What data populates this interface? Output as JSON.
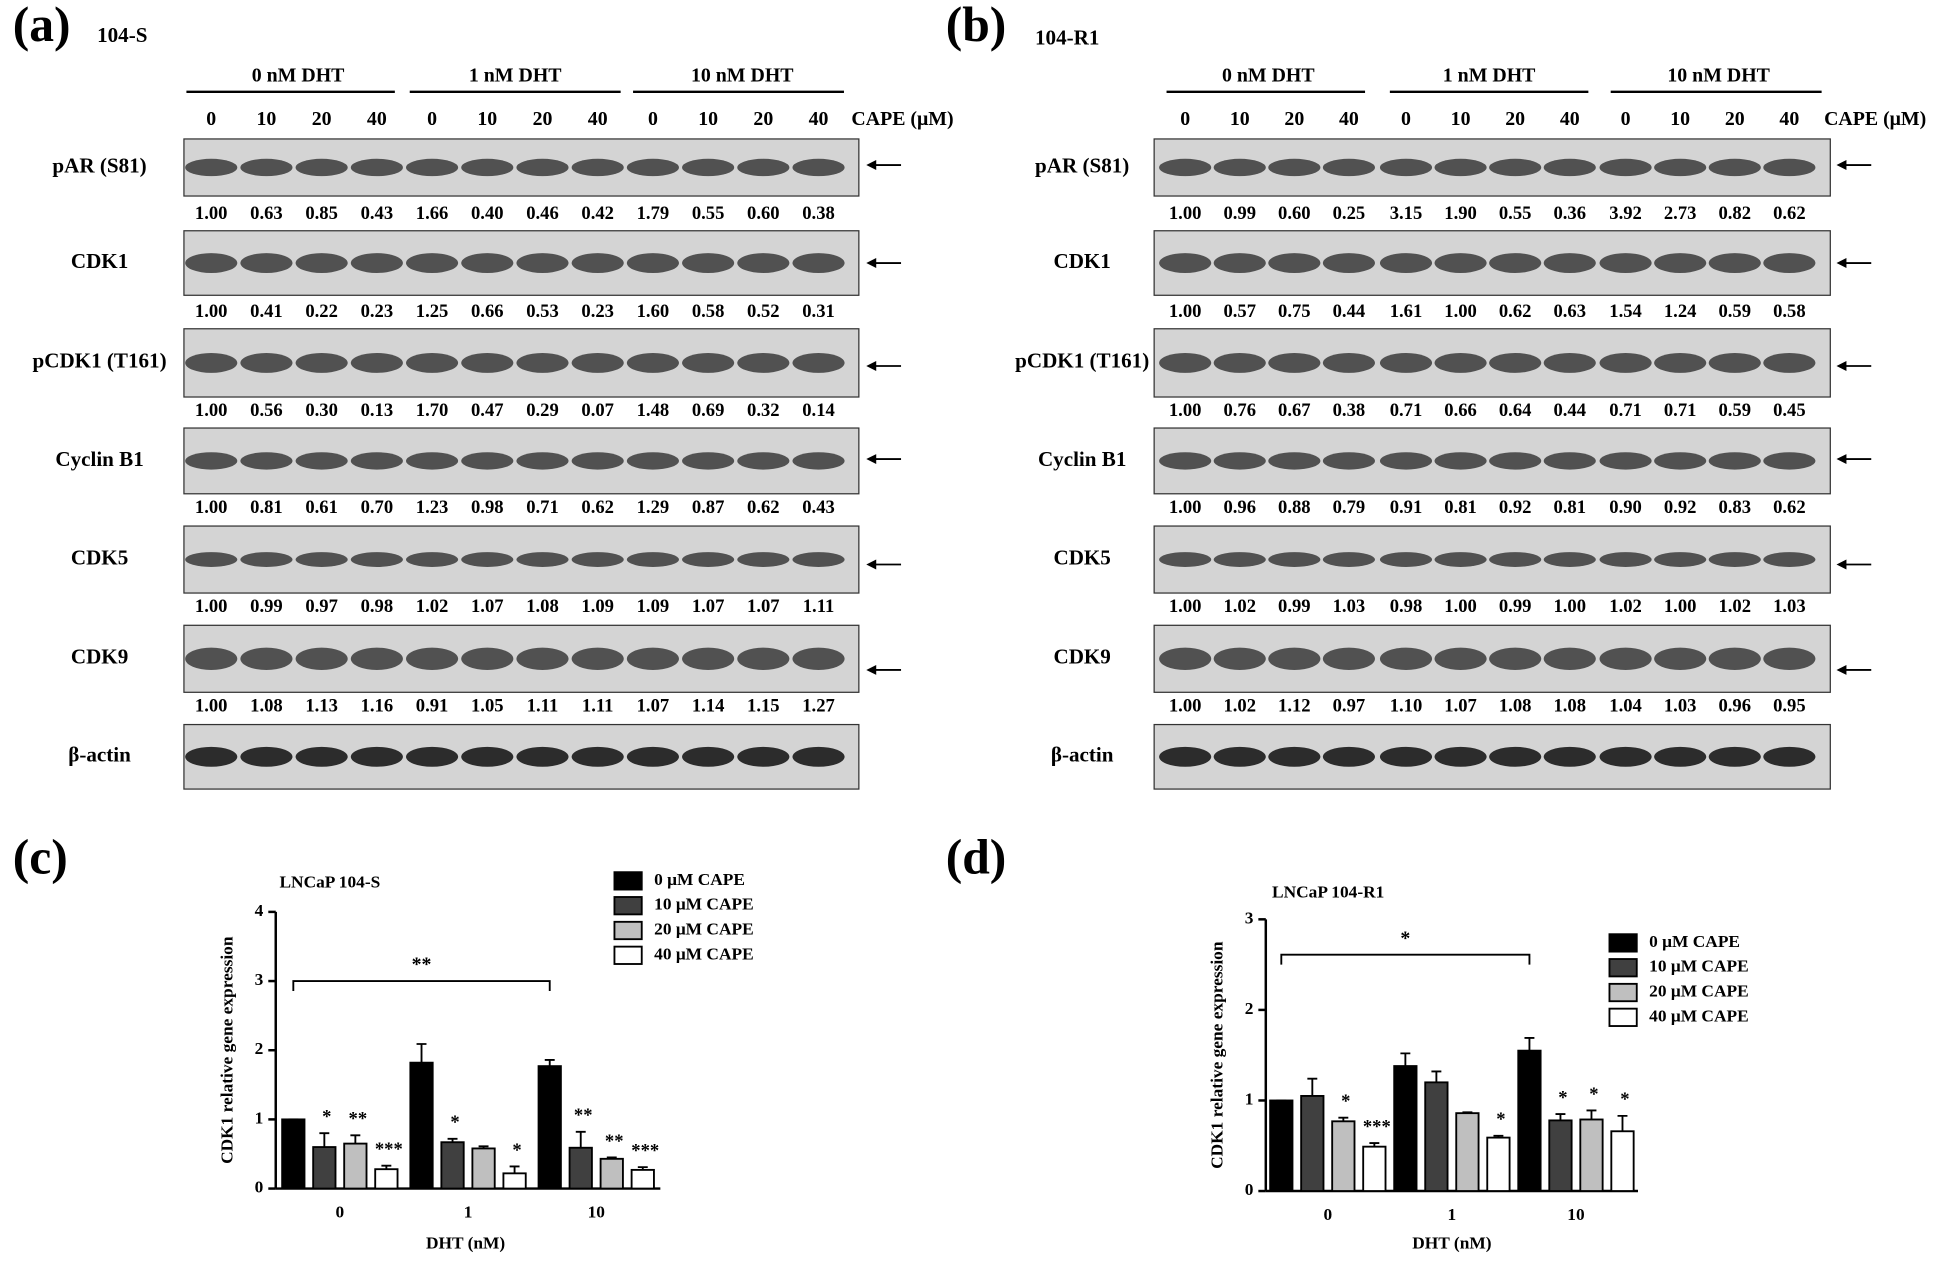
{
  "blots": [
    {
      "label": "(a)",
      "cell_line": "104-S",
      "groups": [
        "0 nM DHT",
        "1 nM DHT",
        "10 nM DHT"
      ],
      "doses": [
        "0",
        "10",
        "20",
        "40"
      ],
      "dose_label": "CAPE (μM)",
      "rows": [
        {
          "name": "pAR (S81)",
          "values": [
            "1.00",
            "0.63",
            "0.85",
            "0.43",
            "1.66",
            "0.40",
            "0.46",
            "0.42",
            "1.79",
            "0.55",
            "0.60",
            "0.38"
          ]
        },
        {
          "name": "CDK1",
          "values": [
            "1.00",
            "0.41",
            "0.22",
            "0.23",
            "1.25",
            "0.66",
            "0.53",
            "0.23",
            "1.60",
            "0.58",
            "0.52",
            "0.31"
          ]
        },
        {
          "name": "pCDK1 (T161)",
          "values": [
            "1.00",
            "0.56",
            "0.30",
            "0.13",
            "1.70",
            "0.47",
            "0.29",
            "0.07",
            "1.48",
            "0.69",
            "0.32",
            "0.14"
          ]
        },
        {
          "name": "Cyclin B1",
          "values": [
            "1.00",
            "0.81",
            "0.61",
            "0.70",
            "1.23",
            "0.98",
            "0.71",
            "0.62",
            "1.29",
            "0.87",
            "0.62",
            "0.43"
          ]
        },
        {
          "name": "CDK5",
          "values": [
            "1.00",
            "0.99",
            "0.97",
            "0.98",
            "1.02",
            "1.07",
            "1.08",
            "1.09",
            "1.09",
            "1.07",
            "1.07",
            "1.11"
          ]
        },
        {
          "name": "CDK9",
          "values": [
            "1.00",
            "1.08",
            "1.13",
            "1.16",
            "0.91",
            "1.05",
            "1.11",
            "1.11",
            "1.07",
            "1.14",
            "1.15",
            "1.27"
          ]
        },
        {
          "name": "β-actin"
        }
      ]
    },
    {
      "label": "(b)",
      "cell_line": "104-R1",
      "groups": [
        "0 nM DHT",
        "1 nM DHT",
        "10 nM DHT"
      ],
      "doses": [
        "0",
        "10",
        "20",
        "40"
      ],
      "dose_label": "CAPE (μM)",
      "rows": [
        {
          "name": "pAR (S81)",
          "values": [
            "1.00",
            "0.99",
            "0.60",
            "0.25",
            "3.15",
            "1.90",
            "0.55",
            "0.36",
            "3.92",
            "2.73",
            "0.82",
            "0.62"
          ]
        },
        {
          "name": "CDK1",
          "values": [
            "1.00",
            "0.57",
            "0.75",
            "0.44",
            "1.61",
            "1.00",
            "0.62",
            "0.63",
            "1.54",
            "1.24",
            "0.59",
            "0.58"
          ]
        },
        {
          "name": "pCDK1 (T161)",
          "values": [
            "1.00",
            "0.76",
            "0.67",
            "0.38",
            "0.71",
            "0.66",
            "0.64",
            "0.44",
            "0.71",
            "0.71",
            "0.59",
            "0.45"
          ]
        },
        {
          "name": "Cyclin B1",
          "values": [
            "1.00",
            "0.96",
            "0.88",
            "0.79",
            "0.91",
            "0.81",
            "0.92",
            "0.81",
            "0.90",
            "0.92",
            "0.83",
            "0.62"
          ]
        },
        {
          "name": "CDK5",
          "values": [
            "1.00",
            "1.02",
            "0.99",
            "1.03",
            "0.98",
            "1.00",
            "0.99",
            "1.00",
            "1.02",
            "1.00",
            "1.02",
            "1.03"
          ]
        },
        {
          "name": "CDK9",
          "values": [
            "1.00",
            "1.02",
            "1.12",
            "0.97",
            "1.10",
            "1.07",
            "1.08",
            "1.08",
            "1.04",
            "1.03",
            "0.96",
            "0.95"
          ]
        },
        {
          "name": "β-actin"
        }
      ]
    }
  ],
  "chart_data": [
    {
      "type": "bar",
      "label": "(c)",
      "title": "LNCaP 104-S",
      "y_label": "CDK1 relative gene expression",
      "x_label": "DHT (nM)",
      "categories": [
        "0",
        "1",
        "10"
      ],
      "ylim": [
        0,
        4
      ],
      "yticks": [
        0,
        1,
        2,
        3,
        4
      ],
      "bracket_label": "**",
      "series": [
        {
          "name": "0 μM CAPE",
          "color": "#000000",
          "values": [
            1.0,
            1.82,
            1.77
          ],
          "errors": [
            0,
            0.27,
            0.09
          ],
          "significance": [
            null,
            null,
            null
          ]
        },
        {
          "name": "10 μM CAPE",
          "color": "#404040",
          "values": [
            0.6,
            0.67,
            0.59
          ],
          "errors": [
            0.2,
            0.05,
            0.23
          ],
          "significance": [
            "*",
            "*",
            "**"
          ]
        },
        {
          "name": "20 μM CAPE",
          "color": "#bfbfbf",
          "values": [
            0.65,
            0.58,
            0.43
          ],
          "errors": [
            0.12,
            0.03,
            0.02
          ],
          "significance": [
            "**",
            null,
            "**"
          ]
        },
        {
          "name": "40 μM CAPE",
          "color": "#ffffff",
          "values": [
            0.28,
            0.22,
            0.27
          ],
          "errors": [
            0.05,
            0.1,
            0.04
          ],
          "significance": [
            "***",
            "*",
            "***"
          ]
        }
      ]
    },
    {
      "type": "bar",
      "label": "(d)",
      "title": "LNCaP 104-R1",
      "y_label": "CDK1 relative gene expression",
      "x_label": "DHT (nM)",
      "categories": [
        "0",
        "1",
        "10"
      ],
      "ylim": [
        0,
        3
      ],
      "yticks": [
        0,
        1,
        2,
        3
      ],
      "bracket_label": "*",
      "series": [
        {
          "name": "0 μM CAPE",
          "color": "#000000",
          "values": [
            1.0,
            1.38,
            1.55
          ],
          "errors": [
            0,
            0.14,
            0.14
          ],
          "significance": [
            null,
            null,
            null
          ]
        },
        {
          "name": "10 μM CAPE",
          "color": "#404040",
          "values": [
            1.05,
            1.2,
            0.78
          ],
          "errors": [
            0.19,
            0.12,
            0.07
          ],
          "significance": [
            null,
            null,
            "*"
          ]
        },
        {
          "name": "20 μM CAPE",
          "color": "#bfbfbf",
          "values": [
            0.77,
            0.86,
            0.79
          ],
          "errors": [
            0.04,
            0.01,
            0.1
          ],
          "significance": [
            "*",
            null,
            "*"
          ]
        },
        {
          "name": "40 μM CAPE",
          "color": "#ffffff",
          "values": [
            0.49,
            0.59,
            0.66
          ],
          "errors": [
            0.04,
            0.02,
            0.17
          ],
          "significance": [
            "***",
            "*",
            "*"
          ]
        }
      ]
    }
  ]
}
